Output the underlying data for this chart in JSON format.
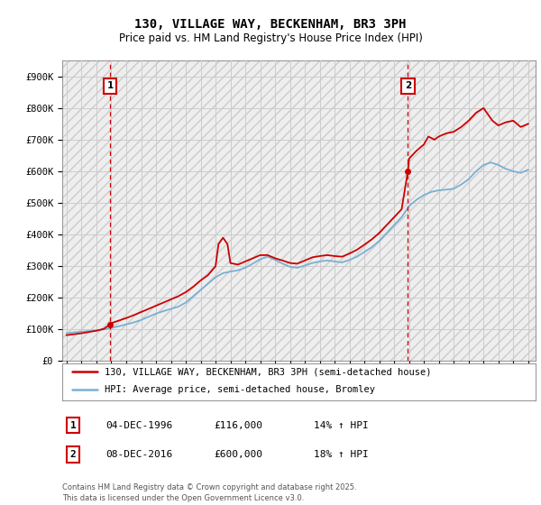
{
  "title": "130, VILLAGE WAY, BECKENHAM, BR3 3PH",
  "subtitle": "Price paid vs. HM Land Registry's House Price Index (HPI)",
  "legend_entry1": "130, VILLAGE WAY, BECKENHAM, BR3 3PH (semi-detached house)",
  "legend_entry2": "HPI: Average price, semi-detached house, Bromley",
  "footnote": "Contains HM Land Registry data © Crown copyright and database right 2025.\nThis data is licensed under the Open Government Licence v3.0.",
  "point1_label": "1",
  "point1_date": "04-DEC-1996",
  "point1_price": "£116,000",
  "point1_hpi": "14% ↑ HPI",
  "point2_label": "2",
  "point2_date": "08-DEC-2016",
  "point2_price": "£600,000",
  "point2_hpi": "18% ↑ HPI",
  "ylim": [
    0,
    950000
  ],
  "yticks": [
    0,
    100000,
    200000,
    300000,
    400000,
    500000,
    600000,
    700000,
    800000,
    900000
  ],
  "ytick_labels": [
    "£0",
    "£100K",
    "£200K",
    "£300K",
    "£400K",
    "£500K",
    "£600K",
    "£700K",
    "£800K",
    "£900K"
  ],
  "line_color_red": "#cc0000",
  "line_color_blue": "#7ab0d4",
  "grid_color": "#cccccc",
  "bg_color": "#ffffff",
  "plot_bg_color": "#ffffff",
  "title_fontsize": 10,
  "subtitle_fontsize": 8.5,
  "axis_fontsize": 7.5,
  "legend_fontsize": 7.5,
  "hpi_x": [
    1994,
    1994.5,
    1995,
    1995.5,
    1996,
    1996.5,
    1997,
    1997.5,
    1998,
    1998.5,
    1999,
    1999.5,
    2000,
    2000.5,
    2001,
    2001.5,
    2002,
    2002.5,
    2003,
    2003.5,
    2004,
    2004.5,
    2005,
    2005.5,
    2006,
    2006.5,
    2007,
    2007.5,
    2008,
    2008.5,
    2009,
    2009.5,
    2010,
    2010.5,
    2011,
    2011.5,
    2012,
    2012.5,
    2013,
    2013.5,
    2014,
    2014.5,
    2015,
    2015.5,
    2016,
    2016.5,
    2017,
    2017.5,
    2018,
    2018.5,
    2019,
    2019.5,
    2020,
    2020.5,
    2021,
    2021.5,
    2022,
    2022.5,
    2023,
    2023.5,
    2024,
    2024.5,
    2025
  ],
  "hpi_y": [
    88000,
    91000,
    93000,
    95000,
    97000,
    100000,
    105000,
    110000,
    116000,
    122000,
    130000,
    140000,
    150000,
    158000,
    165000,
    172000,
    185000,
    205000,
    225000,
    245000,
    265000,
    278000,
    283000,
    287000,
    295000,
    308000,
    322000,
    330000,
    320000,
    308000,
    298000,
    295000,
    302000,
    310000,
    315000,
    318000,
    315000,
    312000,
    320000,
    330000,
    345000,
    360000,
    380000,
    405000,
    430000,
    455000,
    490000,
    510000,
    525000,
    535000,
    540000,
    542000,
    545000,
    558000,
    575000,
    600000,
    620000,
    628000,
    620000,
    608000,
    600000,
    595000,
    605000
  ],
  "red_x": [
    1994,
    1994.5,
    1995,
    1995.5,
    1996,
    1996.5,
    1996.92,
    1997,
    1997.5,
    1998,
    1998.5,
    1999,
    1999.5,
    2000,
    2000.5,
    2001,
    2001.5,
    2002,
    2002.5,
    2003,
    2003.5,
    2004,
    2004.2,
    2004.5,
    2004.8,
    2005,
    2005.5,
    2006,
    2006.5,
    2007,
    2007.5,
    2008,
    2008.5,
    2009,
    2009.5,
    2010,
    2010.5,
    2011,
    2011.5,
    2012,
    2012.5,
    2013,
    2013.5,
    2014,
    2014.5,
    2015,
    2015.5,
    2016,
    2016.5,
    2016.92,
    2017,
    2017.5,
    2018,
    2018.3,
    2018.7,
    2019,
    2019.5,
    2020,
    2020.5,
    2021,
    2021.5,
    2022,
    2022.3,
    2022.6,
    2023,
    2023.5,
    2024,
    2024.5,
    2025
  ],
  "red_y": [
    82000,
    85000,
    88000,
    92000,
    96000,
    102000,
    116000,
    120000,
    128000,
    136000,
    145000,
    155000,
    165000,
    175000,
    185000,
    195000,
    205000,
    218000,
    235000,
    255000,
    272000,
    300000,
    370000,
    390000,
    370000,
    310000,
    305000,
    315000,
    325000,
    335000,
    335000,
    325000,
    318000,
    310000,
    308000,
    318000,
    328000,
    332000,
    335000,
    332000,
    330000,
    340000,
    352000,
    368000,
    385000,
    405000,
    430000,
    455000,
    480000,
    600000,
    640000,
    665000,
    685000,
    710000,
    700000,
    710000,
    720000,
    725000,
    740000,
    760000,
    785000,
    800000,
    780000,
    760000,
    745000,
    755000,
    760000,
    740000,
    750000
  ],
  "price_paid_years": [
    1996.92,
    2016.92
  ],
  "price_paid_values": [
    116000,
    600000
  ],
  "vline1_x": 1996.92,
  "vline2_x": 2016.92,
  "xlim": [
    1993.7,
    2025.5
  ],
  "xticks": [
    1994,
    1995,
    1996,
    1997,
    1998,
    1999,
    2000,
    2001,
    2002,
    2003,
    2004,
    2005,
    2006,
    2007,
    2008,
    2009,
    2010,
    2011,
    2012,
    2013,
    2014,
    2015,
    2016,
    2017,
    2018,
    2019,
    2020,
    2021,
    2022,
    2023,
    2024,
    2025
  ]
}
